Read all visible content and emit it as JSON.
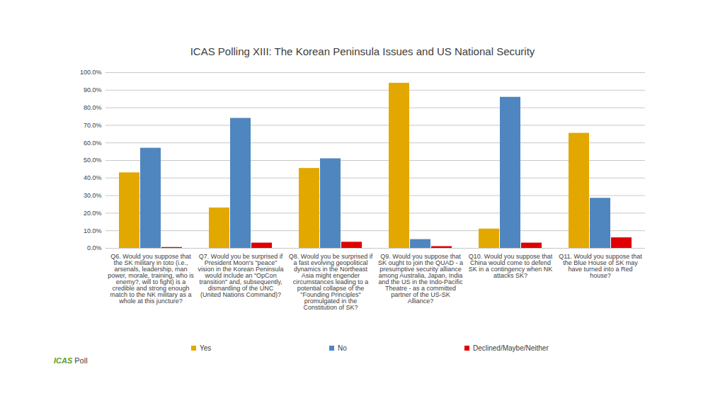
{
  "chart_data": {
    "type": "bar",
    "title": "ICAS Polling XIII: The Korean Peninsula Issues and US National Security",
    "categories": [
      "Q6. Would you suppose that the SK military in toto (i.e., arsenals, leadership, man power, morale, training, who is enemy?, will to fight) is a credible and strong enough match to the NK military as a whole at this juncture?",
      "Q7. Would you be surprised if President Moon's \"peace\" vision in the Korean Peninsula would include an \"OpCon transition\" and, subsequently, dismantling of the UNC (United Nations Command)?",
      "Q8. Would you be surprised if a fast evolving geopolitical dynamics in the Northeast Asia might engender circumstances leading to a potential collapse of the \"Founding Principles\" promulgated in the Constitution of SK?",
      "Q9. Would you suppose that SK ought to join the QUAD - a presumptive security alliance among Australia, Japan, India and the US in the Indo-Pacific Theatre - as a committed partner of the US-SK Alliance?",
      "Q10. Would you suppose that China would come to defend SK in a contingency when NK attacks SK?",
      "Q11. Would you suppose that the Blue House of SK may have turned into a Red house?"
    ],
    "series": [
      {
        "name": "Yes",
        "color": "#e3a800",
        "values": [
          43,
          23,
          45.5,
          94,
          11,
          65.5
        ]
      },
      {
        "name": "No",
        "color": "#4f86c0",
        "values": [
          57,
          74,
          51,
          5,
          86,
          28.5
        ]
      },
      {
        "name": "Declined/Maybe/Neither",
        "color": "#e00000",
        "values": [
          0.5,
          3,
          3.5,
          1,
          3,
          6
        ]
      }
    ],
    "ylim": [
      0,
      100
    ],
    "yticks": [
      {
        "value": 0,
        "label": "0.0%"
      },
      {
        "value": 10,
        "label": "10.0%"
      },
      {
        "value": 20,
        "label": "20.0%"
      },
      {
        "value": 30,
        "label": "30.0%"
      },
      {
        "value": 40,
        "label": "40.0%"
      },
      {
        "value": 50,
        "label": "50.0%"
      },
      {
        "value": 60,
        "label": "60.0%"
      },
      {
        "value": 70,
        "label": "70.0%"
      },
      {
        "value": 80,
        "label": "80.0%"
      },
      {
        "value": 90,
        "label": "90.0%"
      },
      {
        "value": 100,
        "label": "100.0%"
      }
    ],
    "grid": true,
    "legend": "bottom",
    "logo": [
      "ICAS",
      "Poll"
    ]
  }
}
